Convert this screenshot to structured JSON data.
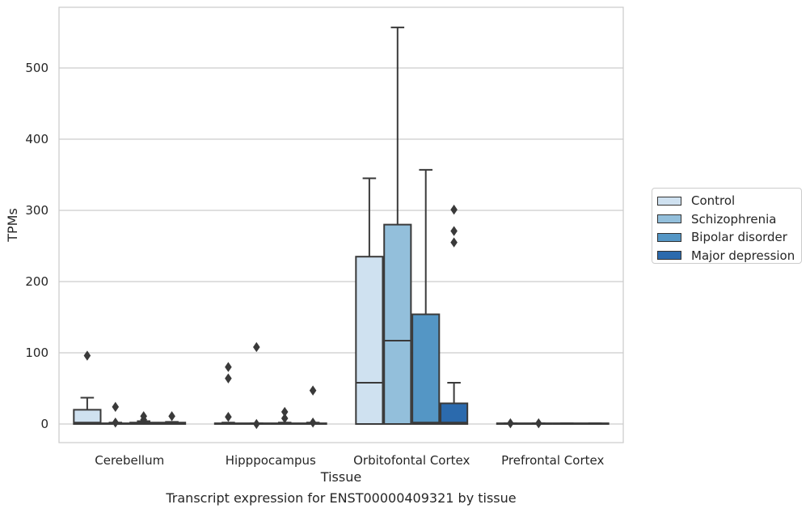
{
  "caption": "Transcript expression for ENST00000409321 by tissue",
  "chart_data": {
    "type": "box",
    "title": "",
    "xlabel": "Tissue",
    "ylabel": "TPMs",
    "categories": [
      "Cerebellum",
      "Hipppocampus",
      "Orbitofontal Cortex",
      "Prefrontal Cortex"
    ],
    "ylim": [
      -28,
      585
    ],
    "yticks": [
      0,
      100,
      200,
      300,
      400,
      500
    ],
    "grid": true,
    "legend_position": "right",
    "colors": [
      "#cfe1f0",
      "#93bfdb",
      "#5496c5",
      "#2b6aad"
    ],
    "series": [
      {
        "name": "Control",
        "boxes": [
          {
            "q1": 0,
            "median": 2,
            "q3": 20,
            "whisker_low": 0,
            "whisker_high": 37,
            "outliers": [
              96
            ]
          },
          {
            "q1": 0,
            "median": 0.5,
            "q3": 1,
            "whisker_low": 0,
            "whisker_high": 2,
            "outliers": [
              10,
              64,
              80
            ]
          },
          {
            "q1": 0,
            "median": 58,
            "q3": 235,
            "whisker_low": 0,
            "whisker_high": 345,
            "outliers": []
          },
          {
            "q1": 0,
            "median": 0.5,
            "q3": 1,
            "whisker_low": 0,
            "whisker_high": 1,
            "outliers": [
              1
            ]
          }
        ]
      },
      {
        "name": "Schizophrenia",
        "boxes": [
          {
            "q1": 0,
            "median": 0.5,
            "q3": 1,
            "whisker_low": 0,
            "whisker_high": 2,
            "outliers": [
              2,
              24
            ]
          },
          {
            "q1": 0,
            "median": 0.5,
            "q3": 1,
            "whisker_low": 0,
            "whisker_high": 1,
            "outliers": [
              0,
              108
            ]
          },
          {
            "q1": 0,
            "median": 117,
            "q3": 280,
            "whisker_low": 0,
            "whisker_high": 557,
            "outliers": []
          },
          {
            "q1": 0,
            "median": 0.5,
            "q3": 1,
            "whisker_low": 0,
            "whisker_high": 1,
            "outliers": [
              1
            ]
          }
        ]
      },
      {
        "name": "Bipolar disorder",
        "boxes": [
          {
            "q1": 0,
            "median": 1,
            "q3": 2,
            "whisker_low": 0,
            "whisker_high": 4,
            "outliers": [
              6,
              11
            ]
          },
          {
            "q1": 0,
            "median": 0.5,
            "q3": 1,
            "whisker_low": 0,
            "whisker_high": 2,
            "outliers": [
              8,
              17
            ]
          },
          {
            "q1": 0,
            "median": 2,
            "q3": 154,
            "whisker_low": 0,
            "whisker_high": 357,
            "outliers": []
          },
          {
            "q1": 0,
            "median": 0.5,
            "q3": 1,
            "whisker_low": 0,
            "whisker_high": 1,
            "outliers": []
          }
        ]
      },
      {
        "name": "Major depression",
        "boxes": [
          {
            "q1": 0,
            "median": 1,
            "q3": 2,
            "whisker_low": 0,
            "whisker_high": 3,
            "outliers": [
              11
            ]
          },
          {
            "q1": 0,
            "median": 0.5,
            "q3": 1,
            "whisker_low": 0,
            "whisker_high": 2,
            "outliers": [
              2,
              47
            ]
          },
          {
            "q1": 0,
            "median": 2,
            "q3": 29,
            "whisker_low": 0,
            "whisker_high": 58,
            "outliers": [
              255,
              271,
              301
            ]
          },
          {
            "q1": 0,
            "median": 0.5,
            "q3": 1,
            "whisker_low": 0,
            "whisker_high": 1,
            "outliers": []
          }
        ]
      }
    ]
  }
}
